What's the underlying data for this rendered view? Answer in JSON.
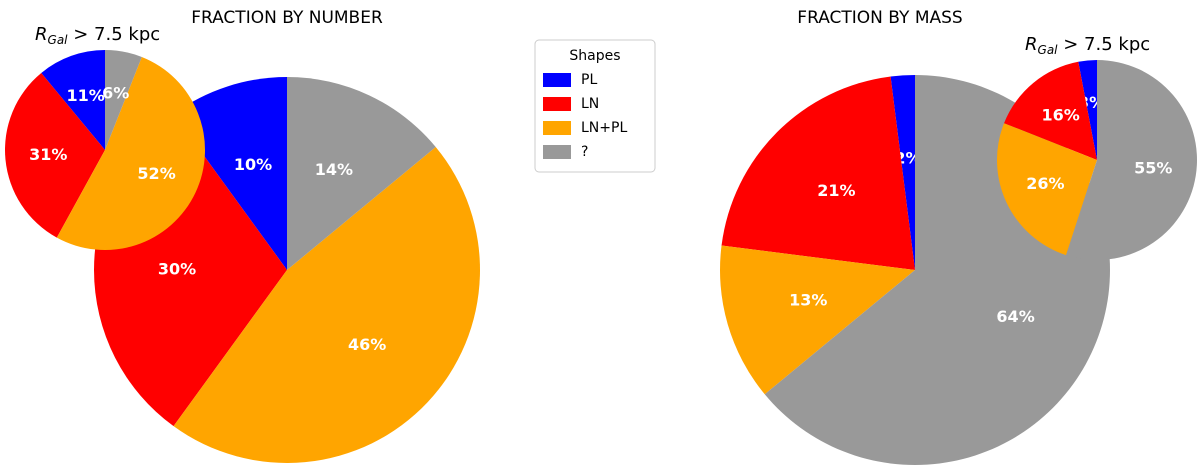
{
  "chart_data": [
    {
      "type": "pie",
      "title": "FRACTION BY NUMBER",
      "values": [
        10,
        30,
        46,
        14
      ],
      "value_labels": [
        "10%",
        "30%",
        "46%",
        "14%"
      ]
    },
    {
      "type": "pie",
      "inset_label": {
        "symbol": "R",
        "subscript": "Gal",
        "text": " > 7.5 kpc"
      },
      "values": [
        11,
        31,
        52,
        6
      ],
      "value_labels": [
        "11%",
        "31%",
        "52%",
        "6%"
      ]
    },
    {
      "type": "pie",
      "title": "FRACTION BY MASS",
      "values": [
        2,
        21,
        13,
        64
      ],
      "value_labels": [
        "2%",
        "21%",
        "13%",
        "64%"
      ]
    },
    {
      "type": "pie",
      "inset_label": {
        "symbol": "R",
        "subscript": "Gal",
        "text": " > 7.5 kpc"
      },
      "values": [
        3,
        16,
        26,
        55
      ],
      "value_labels": [
        "3%",
        "16%",
        "26%",
        "55%"
      ]
    }
  ],
  "legend": {
    "title": "Shapes",
    "labels": [
      "PL",
      "LN",
      "LN+PL",
      "?"
    ],
    "colors": [
      "#0000ff",
      "#ff0000",
      "#ffa500",
      "#999999"
    ]
  }
}
